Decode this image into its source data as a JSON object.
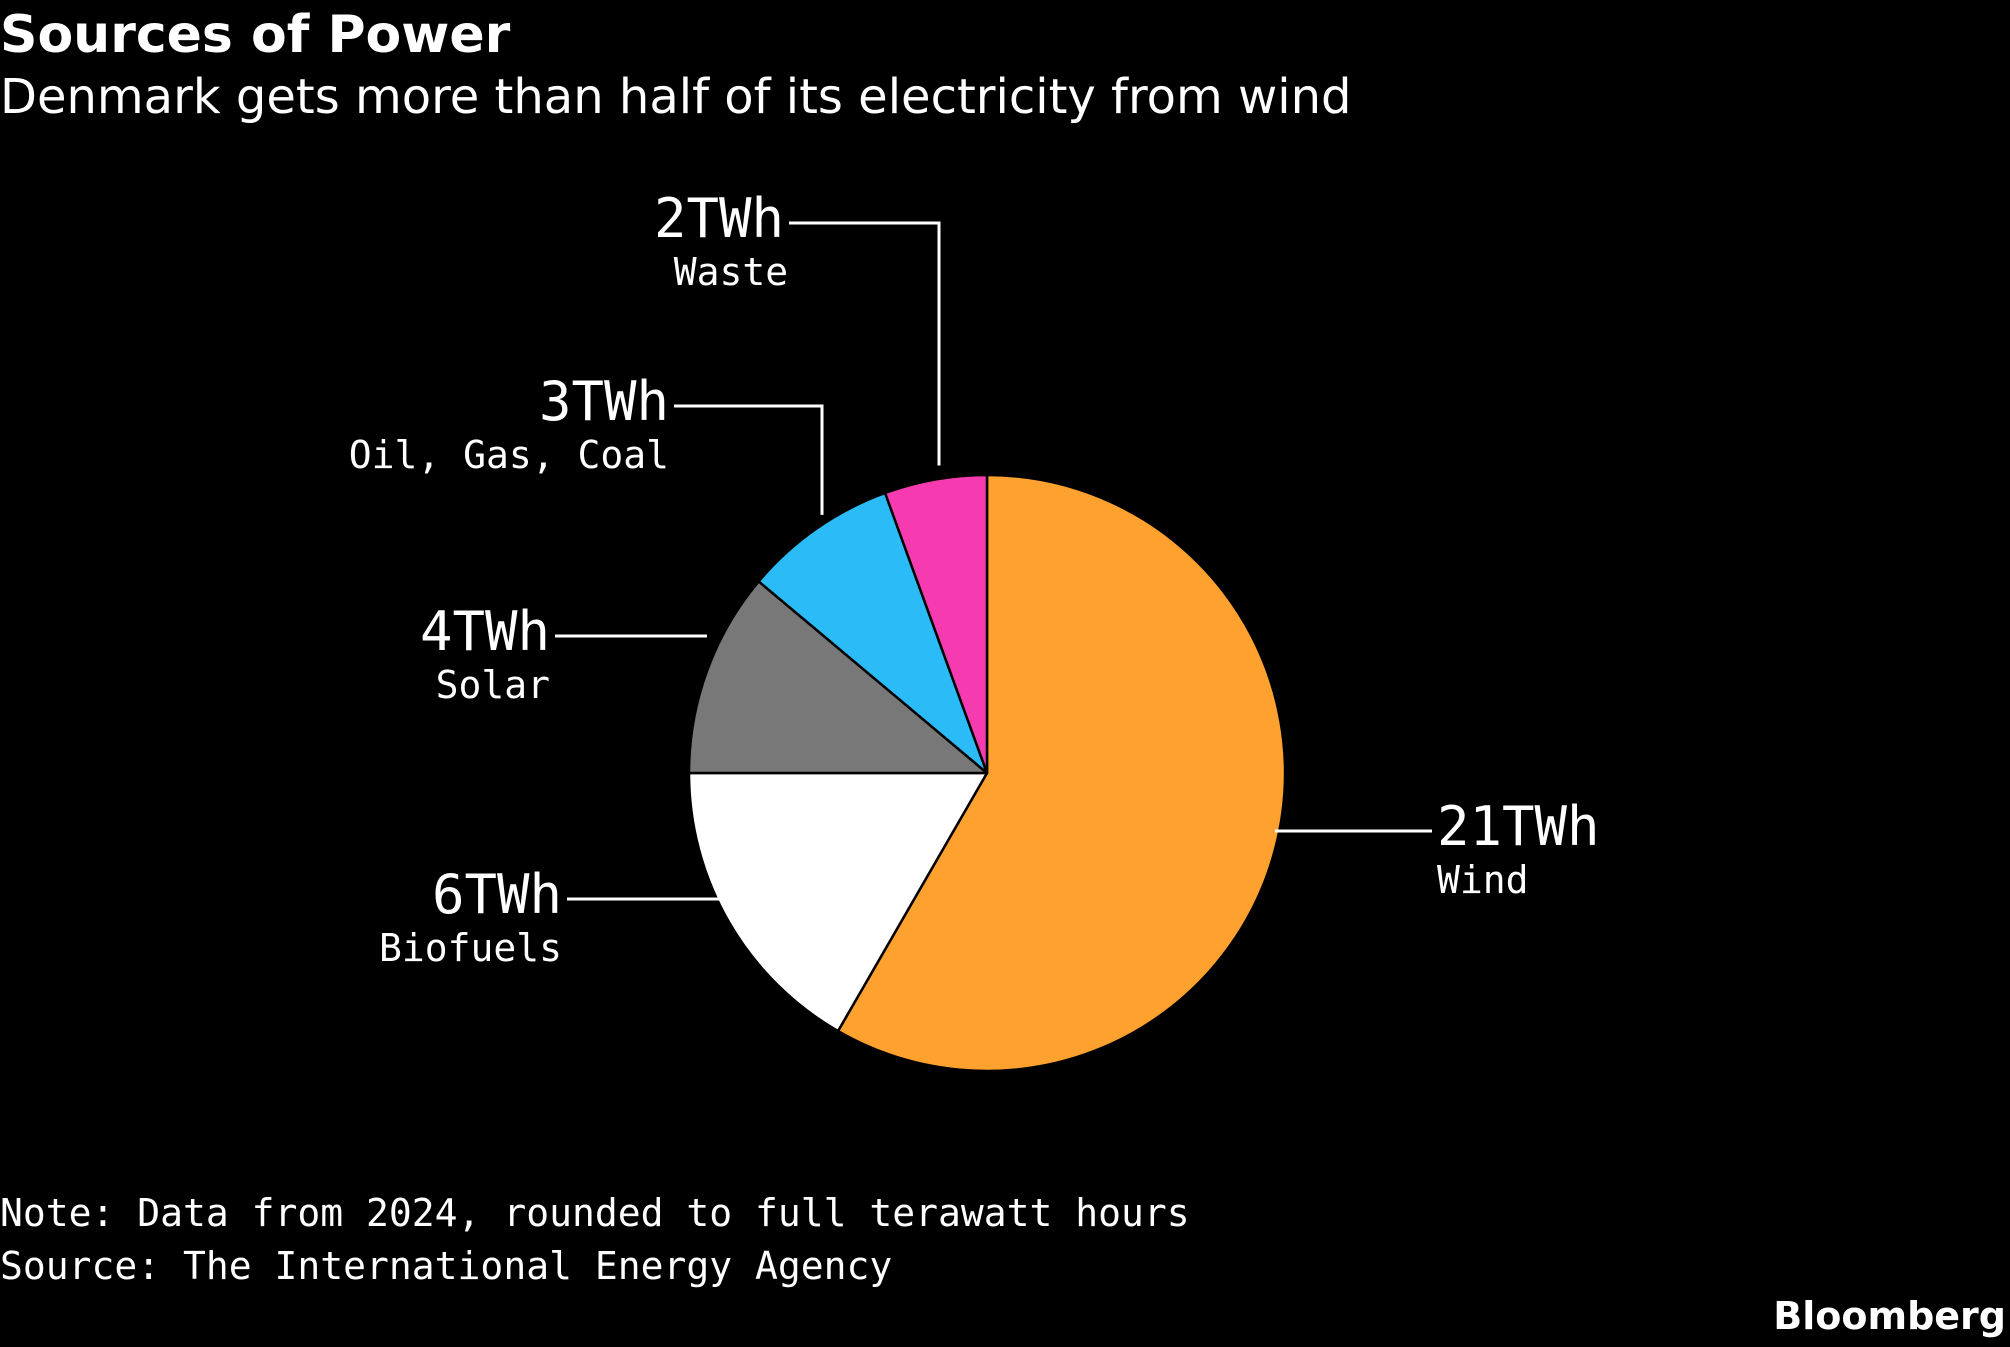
{
  "chart_data": {
    "type": "pie",
    "title": "Sources of Power",
    "subtitle": "Denmark gets more than half of its electricity from wind",
    "unit": "TWh",
    "slices": [
      {
        "name": "Wind",
        "value": 21,
        "label": "21TWh",
        "color": "#ffa12e"
      },
      {
        "name": "Biofuels",
        "value": 6,
        "label": "6TWh",
        "color": "#ffffff"
      },
      {
        "name": "Solar",
        "value": 4,
        "label": "4TWh",
        "color": "#787878"
      },
      {
        "name": "Oil, Gas, Coal",
        "value": 3,
        "label": "3TWh",
        "color": "#2bbcf7"
      },
      {
        "name": "Waste",
        "value": 2,
        "label": "2TWh",
        "color": "#f63bb0"
      }
    ],
    "note": "Note: Data from 2024, rounded to full terawatt hours",
    "source": "Source: The International Energy Agency"
  },
  "brand": "Bloomberg"
}
